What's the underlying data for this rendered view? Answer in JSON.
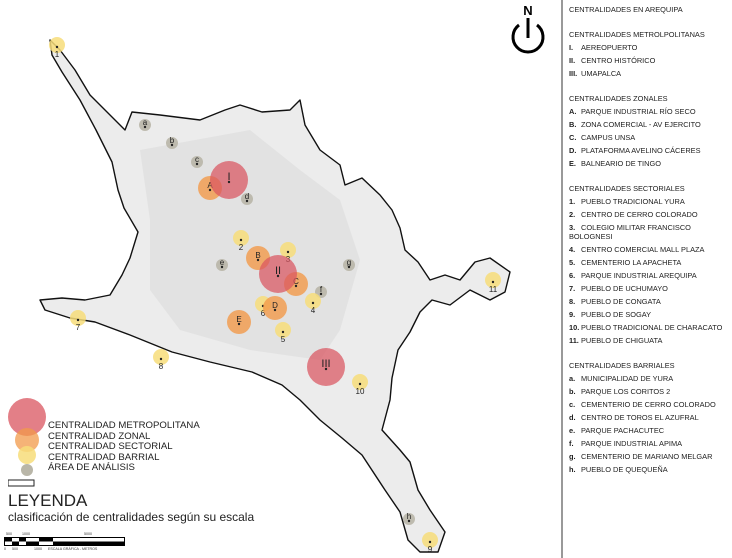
{
  "north_label": "N",
  "colors": {
    "metropolitana": "#d9545f",
    "zonal": "#f29a4a",
    "sectorial": "#f7dd7a",
    "barrial": "#b9b6a8",
    "urban": "#e4e4e4"
  },
  "panel": {
    "title": "CENTRALIDADES EN AREQUIPA",
    "sections": [
      {
        "title": "CENTRALIDADES METROLPOLITANAS",
        "category": "metropolitana",
        "items": [
          {
            "key": "I.",
            "label": "AEREOPUERTO"
          },
          {
            "key": "II.",
            "label": "CENTRO HISTÓRICO"
          },
          {
            "key": "III.",
            "label": "UMAPALCA"
          }
        ]
      },
      {
        "title": "CENTRALIDADES ZONALES",
        "category": "zonal",
        "items": [
          {
            "key": "A.",
            "label": "PARQUE INDUSTRIAL RÍO SECO"
          },
          {
            "key": "B.",
            "label": "ZONA COMERCIAL - AV EJERCITO"
          },
          {
            "key": "C.",
            "label": "CAMPUS UNSA"
          },
          {
            "key": "D.",
            "label": "PLATAFORMA AVELINO CÁCERES"
          },
          {
            "key": "E.",
            "label": "BALNEARIO DE TINGO"
          }
        ]
      },
      {
        "title": "CENTRALIDADES SECTORIALES",
        "category": "sectorial",
        "items": [
          {
            "key": "1.",
            "label": "PUEBLO TRADICIONAL YURA"
          },
          {
            "key": "2.",
            "label": "CENTRO DE CERRO COLORADO"
          },
          {
            "key": "3.",
            "label": "COLEGIO MILITAR FRANCISCO BOLOGNESI"
          },
          {
            "key": "4.",
            "label": "CENTRO COMERCIAL MALL PLAZA"
          },
          {
            "key": "5.",
            "label": "CEMENTERIO LA APACHETA"
          },
          {
            "key": "6.",
            "label": "PARQUE INDUSTRIAL AREQUIPA"
          },
          {
            "key": "7.",
            "label": "PUEBLO DE UCHUMAYO"
          },
          {
            "key": "8.",
            "label": "PUEBLO DE CONGATA"
          },
          {
            "key": "9.",
            "label": "PUEBLO DE SOGAY"
          },
          {
            "key": "10.",
            "label": "PUEBLO TRADICIONAL DE CHARACATO"
          },
          {
            "key": "11.",
            "label": "PUEBLO DE CHIGUATA"
          }
        ]
      },
      {
        "title": "CENTRALIDADES BARRIALES",
        "category": "barrial",
        "items": [
          {
            "key": "a.",
            "label": "MUNICIPALIDAD DE YURA"
          },
          {
            "key": "b.",
            "label": "PARQUE LOS CORITOS 2"
          },
          {
            "key": "c.",
            "label": "CEMENTERIO DE CERRO COLORADO"
          },
          {
            "key": "d.",
            "label": "CENTRO DE TOROS EL AZUFRAL"
          },
          {
            "key": "e.",
            "label": "PARQUE PACHACUTEC"
          },
          {
            "key": "f.",
            "label": "PARQUE INDUSTRIAL APIMA"
          },
          {
            "key": "g.",
            "label": "CEMENTERIO DE MARIANO MELGAR"
          },
          {
            "key": "h.",
            "label": "PUEBLO DE QUEQUEÑA"
          }
        ]
      }
    ]
  },
  "legend": {
    "entries": [
      "CENTRALIDAD METROPOLITANA",
      "CENTRALIDAD ZONAL",
      "CENTRALIDAD SECTORIAL",
      "CENTRALIDAD BARRIAL",
      "ÁREA DE ANÁLISIS"
    ],
    "title": "LEYENDA",
    "subtitle": "clasificación de centralidades según su escala"
  },
  "scale": {
    "top_ticks": [
      "500",
      "1000",
      "5000"
    ],
    "bottom_ticks": [
      "0",
      "500",
      "1000"
    ],
    "label": "ESCALA GRÁFICA - METROS"
  }
}
